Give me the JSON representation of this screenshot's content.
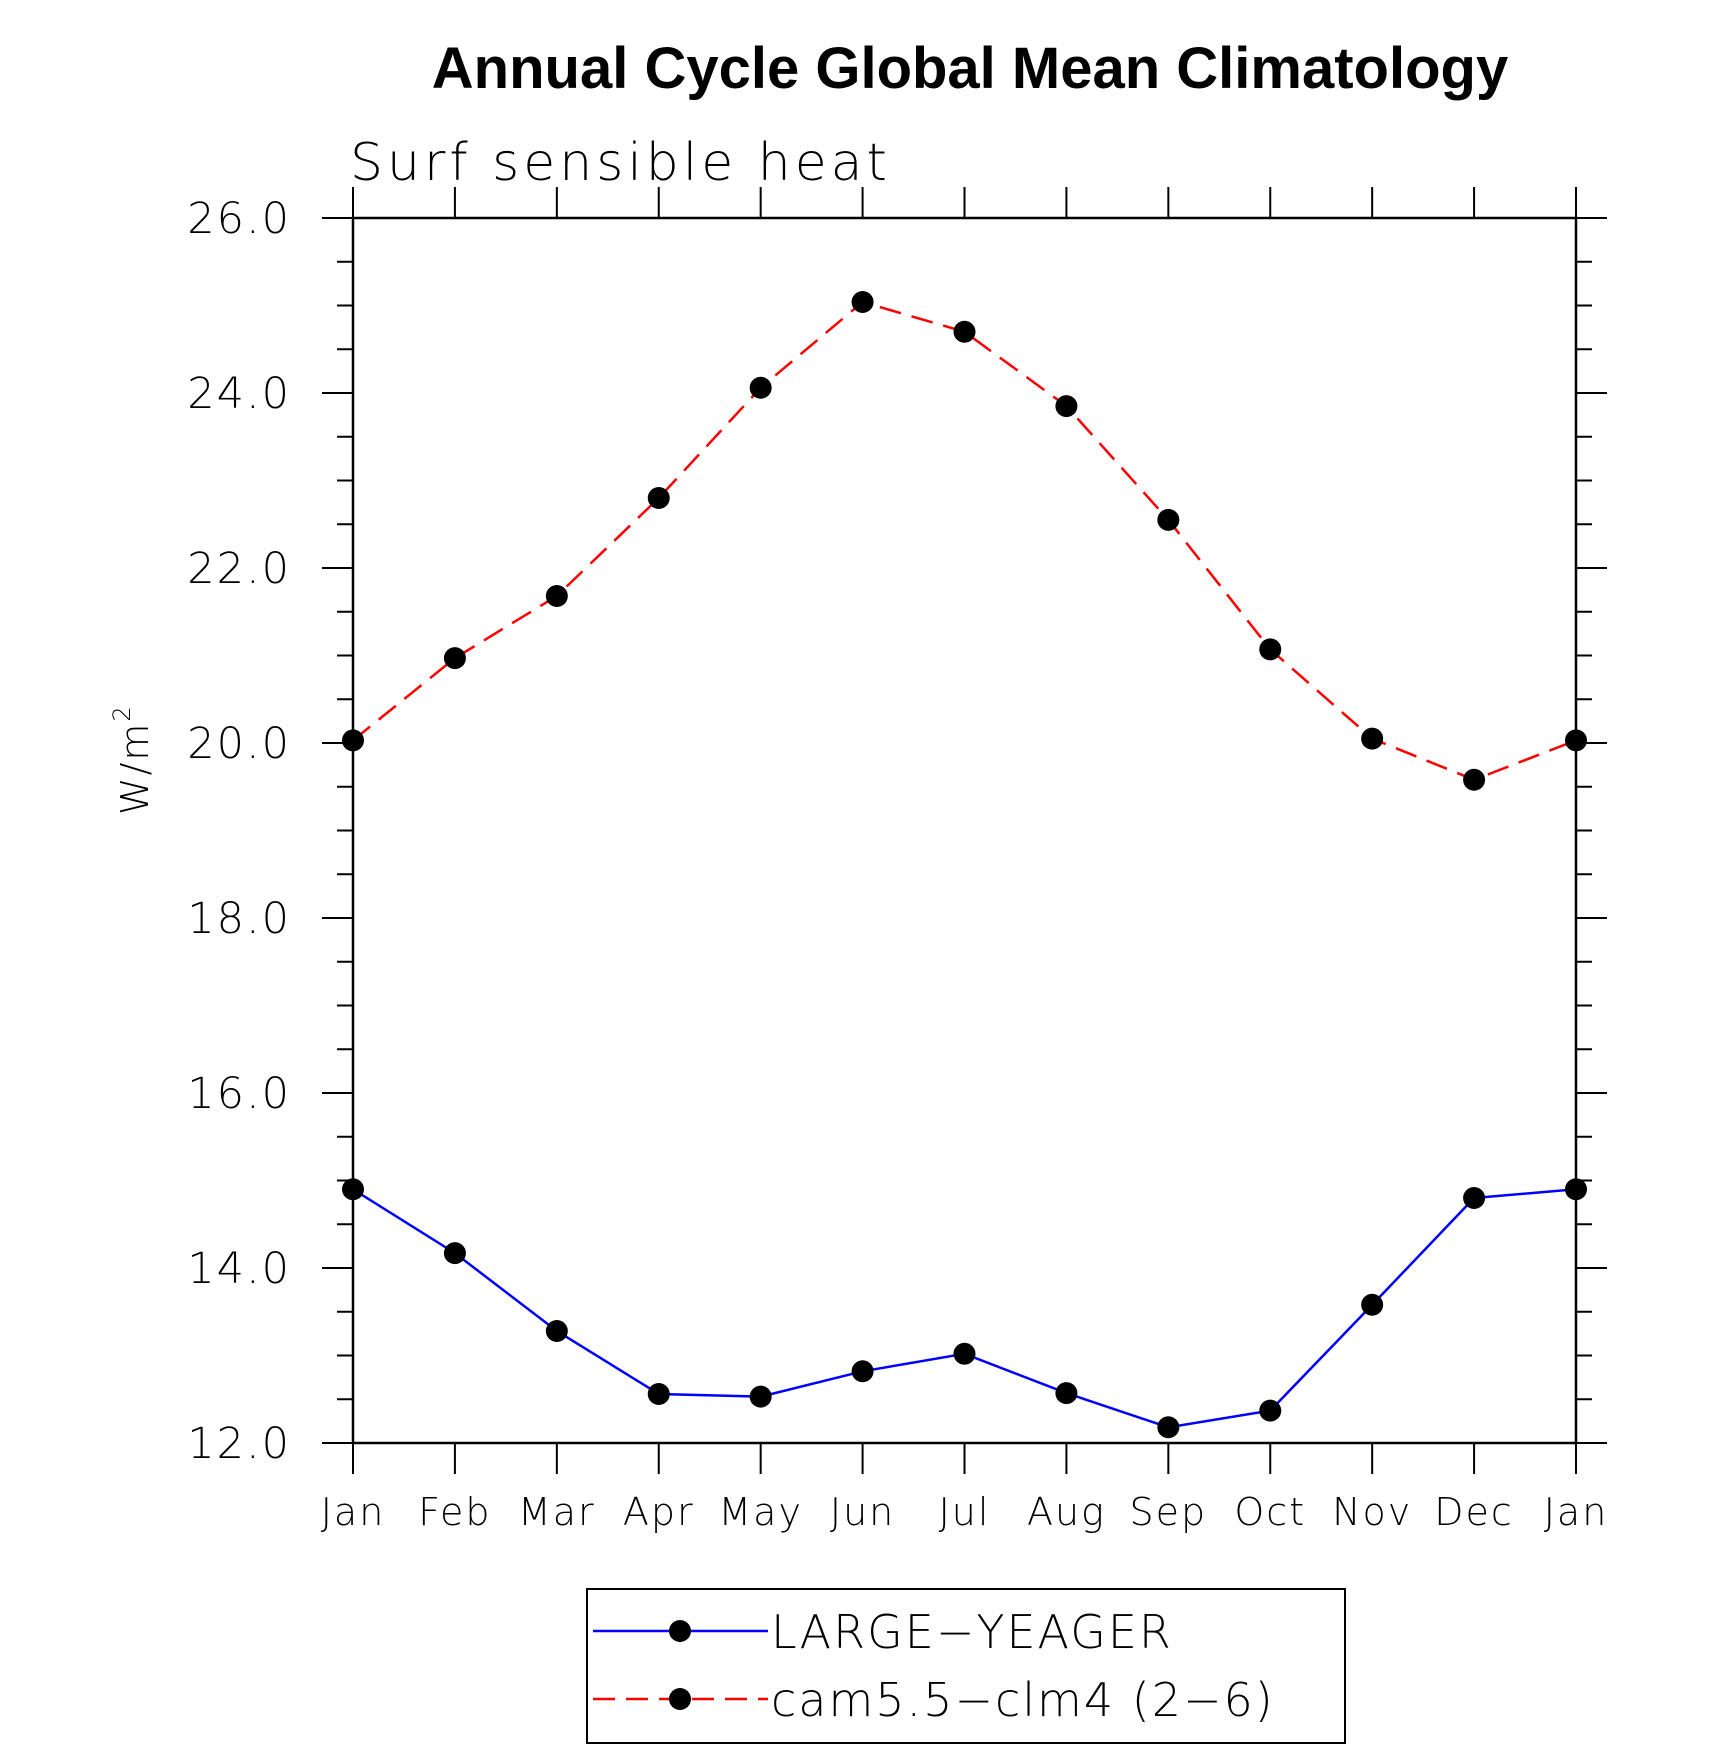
{
  "chart_data": {
    "type": "line",
    "title": "Annual Cycle Global Mean Climatology",
    "subtitle": "Surf sensible heat",
    "xlabel": "",
    "ylabel": "W/m",
    "ylabel_superscript": "2",
    "categories": [
      "Jan",
      "Feb",
      "Mar",
      "Apr",
      "May",
      "Jun",
      "Jul",
      "Aug",
      "Sep",
      "Oct",
      "Nov",
      "Dec",
      "Jan"
    ],
    "ylim": [
      12.0,
      26.0
    ],
    "yticks": [
      "12.0",
      "14.0",
      "16.0",
      "18.0",
      "20.0",
      "22.0",
      "24.0",
      "26.0"
    ],
    "grid": false,
    "legend_position": "bottom",
    "series": [
      {
        "name": "LARGE−YEAGER",
        "color": "#0000ff",
        "line_style": "solid",
        "marker": "filled-circle",
        "values": [
          14.9,
          14.17,
          13.28,
          12.56,
          12.53,
          12.82,
          13.02,
          12.57,
          12.18,
          12.37,
          13.58,
          14.8,
          14.9
        ]
      },
      {
        "name": "cam5.5−clm4 (2−6)",
        "color": "#ff0000",
        "line_style": "dashed",
        "marker": "filled-circle",
        "values": [
          20.03,
          20.97,
          21.68,
          22.8,
          24.06,
          25.04,
          24.7,
          23.85,
          22.55,
          21.07,
          20.05,
          19.58,
          20.03
        ]
      }
    ]
  }
}
